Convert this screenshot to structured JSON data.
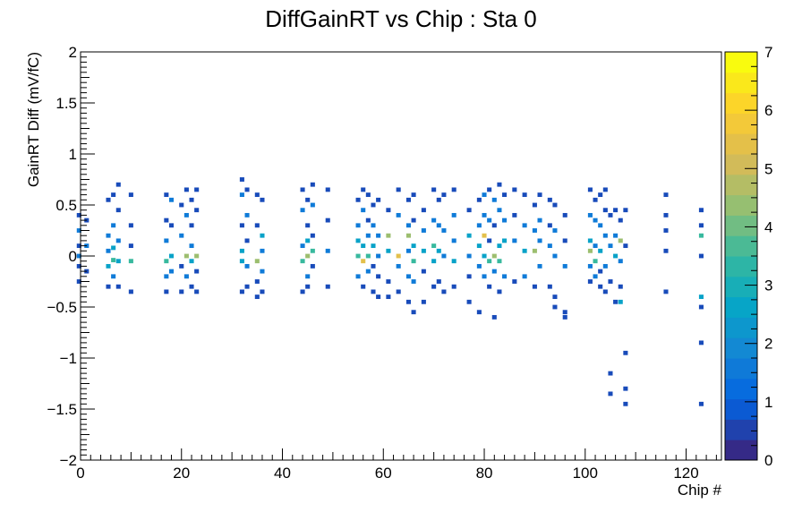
{
  "chart_data": {
    "type": "heatmap",
    "title": "DiffGainRT vs Chip : Sta 0",
    "xlabel": "Chip #",
    "ylabel": "GainRT Diff (mV/fC)",
    "xlim": [
      0,
      127
    ],
    "ylim": [
      -2,
      2
    ],
    "x_ticks": [
      "0",
      "20",
      "40",
      "60",
      "80",
      "100",
      "120"
    ],
    "y_ticks": [
      "2",
      "1.5",
      "1",
      "0.5",
      "0",
      "−0.5",
      "−1",
      "−1.5",
      "−2"
    ],
    "colorbar": {
      "range": [
        0,
        7
      ],
      "ticks": [
        "0",
        "1",
        "2",
        "3",
        "4",
        "5",
        "6",
        "7"
      ],
      "palette": "kBird",
      "colors": [
        "#352a87",
        "#0363e1",
        "#1485d4",
        "#06a7c6",
        "#38b99e",
        "#92bf73",
        "#d9ba56",
        "#fcce2e",
        "#f9fb0e"
      ]
    },
    "grid": false,
    "legend": "none",
    "bin_width": {
      "x": 1,
      "y": 0.025
    },
    "chips": [
      0,
      1,
      5,
      6,
      7,
      9,
      10,
      17,
      18,
      20,
      21,
      22,
      23,
      32,
      33,
      35,
      36,
      44,
      45,
      46,
      49,
      55,
      56,
      57,
      58,
      59,
      61,
      63,
      65,
      66,
      68,
      70,
      71,
      72,
      74,
      77,
      79,
      80,
      81,
      82,
      83,
      84,
      86,
      88,
      90,
      91,
      93,
      94,
      96,
      101,
      102,
      103,
      104,
      105,
      106,
      107,
      108,
      116,
      123
    ],
    "cells": [
      [
        -0.3,
        0.4,
        1
      ],
      [
        -0.3,
        0.25,
        2
      ],
      [
        -0.3,
        0.1,
        1
      ],
      [
        -0.3,
        0.0,
        2
      ],
      [
        -0.3,
        -0.1,
        1
      ],
      [
        -0.3,
        -0.25,
        1
      ],
      [
        1.2,
        0.35,
        1
      ],
      [
        1.2,
        0.1,
        2
      ],
      [
        1.2,
        -0.15,
        1
      ],
      [
        5.5,
        0.55,
        1
      ],
      [
        5.5,
        0.2,
        2
      ],
      [
        5.5,
        0.05,
        2
      ],
      [
        5.5,
        -0.1,
        3
      ],
      [
        5.5,
        -0.3,
        1
      ],
      [
        6.5,
        0.6,
        1
      ],
      [
        6.5,
        0.3,
        2
      ],
      [
        6.5,
        0.08,
        3
      ],
      [
        6.5,
        -0.04,
        4
      ],
      [
        6.5,
        -0.2,
        2
      ],
      [
        7.5,
        0.7,
        1
      ],
      [
        7.5,
        0.45,
        1
      ],
      [
        7.5,
        0.15,
        2
      ],
      [
        7.5,
        -0.05,
        3
      ],
      [
        7.5,
        -0.3,
        1
      ],
      [
        10,
        0.6,
        1
      ],
      [
        10,
        0.3,
        1
      ],
      [
        10,
        0.1,
        1
      ],
      [
        10,
        -0.05,
        4
      ],
      [
        10,
        -0.35,
        1
      ],
      [
        17,
        0.6,
        1
      ],
      [
        17,
        0.35,
        1
      ],
      [
        17,
        0.15,
        2
      ],
      [
        17,
        -0.05,
        4
      ],
      [
        17,
        -0.2,
        2
      ],
      [
        17,
        -0.35,
        1
      ],
      [
        18,
        0.55,
        2
      ],
      [
        18,
        0.3,
        1
      ],
      [
        18,
        0.0,
        3
      ],
      [
        18,
        -0.15,
        2
      ],
      [
        20,
        0.5,
        1
      ],
      [
        20,
        0.2,
        2
      ],
      [
        20,
        -0.1,
        1
      ],
      [
        20,
        -0.35,
        1
      ],
      [
        21,
        0.65,
        1
      ],
      [
        21,
        0.4,
        2
      ],
      [
        21,
        0.0,
        5
      ],
      [
        21,
        -0.2,
        2
      ],
      [
        22,
        0.55,
        1
      ],
      [
        22,
        0.3,
        1
      ],
      [
        22,
        0.1,
        2
      ],
      [
        22,
        -0.05,
        3
      ],
      [
        22,
        -0.3,
        1
      ],
      [
        23,
        0.65,
        1
      ],
      [
        23,
        0.45,
        1
      ],
      [
        23,
        0.0,
        5
      ],
      [
        23,
        -0.15,
        1
      ],
      [
        23,
        -0.35,
        1
      ],
      [
        32,
        0.75,
        1
      ],
      [
        32,
        0.6,
        2
      ],
      [
        32,
        0.3,
        1
      ],
      [
        32,
        0.05,
        3
      ],
      [
        32,
        -0.05,
        3
      ],
      [
        32,
        -0.35,
        1
      ],
      [
        33,
        0.65,
        1
      ],
      [
        33,
        0.4,
        2
      ],
      [
        33,
        0.15,
        1
      ],
      [
        33,
        -0.1,
        2
      ],
      [
        33,
        -0.3,
        1
      ],
      [
        35,
        0.6,
        1
      ],
      [
        35,
        0.3,
        1
      ],
      [
        35,
        -0.05,
        5
      ],
      [
        35,
        -0.25,
        1
      ],
      [
        35,
        -0.4,
        1
      ],
      [
        36,
        0.55,
        1
      ],
      [
        36,
        0.2,
        3
      ],
      [
        36,
        0.05,
        2
      ],
      [
        36,
        -0.15,
        2
      ],
      [
        36,
        -0.35,
        1
      ],
      [
        44,
        0.65,
        1
      ],
      [
        44,
        0.45,
        2
      ],
      [
        44,
        0.1,
        2
      ],
      [
        44,
        -0.05,
        4
      ],
      [
        44,
        -0.35,
        1
      ],
      [
        45,
        0.55,
        1
      ],
      [
        45,
        0.3,
        1
      ],
      [
        45,
        0.15,
        3
      ],
      [
        45,
        0.0,
        5
      ],
      [
        45,
        -0.2,
        2
      ],
      [
        45,
        -0.3,
        1
      ],
      [
        46,
        0.7,
        1
      ],
      [
        46,
        0.5,
        2
      ],
      [
        46,
        0.2,
        1
      ],
      [
        46,
        0.05,
        4
      ],
      [
        46,
        -0.1,
        1
      ],
      [
        49,
        0.65,
        1
      ],
      [
        49,
        0.35,
        1
      ],
      [
        49,
        0.05,
        2
      ],
      [
        49,
        -0.3,
        1
      ],
      [
        55,
        0.55,
        1
      ],
      [
        55,
        0.3,
        2
      ],
      [
        55,
        0.15,
        3
      ],
      [
        55,
        0.0,
        4
      ],
      [
        55,
        -0.2,
        2
      ],
      [
        56,
        0.65,
        1
      ],
      [
        56,
        0.45,
        2
      ],
      [
        56,
        0.1,
        3
      ],
      [
        56,
        -0.05,
        6
      ],
      [
        56,
        -0.3,
        1
      ],
      [
        57,
        0.6,
        1
      ],
      [
        57,
        0.35,
        1
      ],
      [
        57,
        0.2,
        2
      ],
      [
        57,
        0.0,
        4
      ],
      [
        57,
        -0.15,
        2
      ],
      [
        58,
        0.5,
        1
      ],
      [
        58,
        0.3,
        2
      ],
      [
        58,
        0.1,
        3
      ],
      [
        58,
        -0.1,
        1
      ],
      [
        58,
        -0.35,
        1
      ],
      [
        59,
        0.55,
        1
      ],
      [
        59,
        0.2,
        2
      ],
      [
        59,
        0.0,
        2
      ],
      [
        59,
        -0.2,
        1
      ],
      [
        59,
        -0.4,
        1
      ],
      [
        61,
        0.45,
        1
      ],
      [
        61,
        0.2,
        5
      ],
      [
        61,
        0.05,
        3
      ],
      [
        61,
        -0.25,
        1
      ],
      [
        61,
        -0.4,
        1
      ],
      [
        63,
        0.65,
        1
      ],
      [
        63,
        0.4,
        2
      ],
      [
        63,
        0.0,
        6
      ],
      [
        63,
        -0.1,
        2
      ],
      [
        63,
        -0.35,
        1
      ],
      [
        65,
        0.55,
        1
      ],
      [
        65,
        0.3,
        2
      ],
      [
        65,
        0.2,
        5
      ],
      [
        65,
        0.05,
        2
      ],
      [
        65,
        -0.2,
        2
      ],
      [
        65,
        -0.45,
        1
      ],
      [
        66,
        0.6,
        1
      ],
      [
        66,
        0.35,
        1
      ],
      [
        66,
        0.1,
        3
      ],
      [
        66,
        -0.05,
        4
      ],
      [
        66,
        -0.25,
        2
      ],
      [
        66,
        -0.55,
        1
      ],
      [
        68,
        0.45,
        1
      ],
      [
        68,
        0.25,
        2
      ],
      [
        68,
        0.05,
        3
      ],
      [
        68,
        -0.15,
        1
      ],
      [
        68,
        -0.45,
        1
      ],
      [
        70,
        0.65,
        1
      ],
      [
        70,
        0.35,
        2
      ],
      [
        70,
        0.1,
        4
      ],
      [
        70,
        -0.05,
        3
      ],
      [
        70,
        -0.3,
        1
      ],
      [
        71,
        0.55,
        1
      ],
      [
        71,
        0.3,
        2
      ],
      [
        71,
        0.05,
        3
      ],
      [
        71,
        -0.25,
        1
      ],
      [
        72,
        0.6,
        1
      ],
      [
        72,
        0.25,
        2
      ],
      [
        72,
        0.0,
        2
      ],
      [
        72,
        -0.35,
        1
      ],
      [
        74,
        0.65,
        1
      ],
      [
        74,
        0.4,
        2
      ],
      [
        74,
        0.15,
        2
      ],
      [
        74,
        -0.05,
        3
      ],
      [
        74,
        -0.3,
        1
      ],
      [
        77,
        0.45,
        1
      ],
      [
        77,
        0.2,
        3
      ],
      [
        77,
        0.0,
        2
      ],
      [
        77,
        -0.2,
        1
      ],
      [
        77,
        -0.45,
        1
      ],
      [
        79,
        0.55,
        1
      ],
      [
        79,
        0.3,
        2
      ],
      [
        79,
        0.1,
        3
      ],
      [
        79,
        -0.1,
        2
      ],
      [
        79,
        -0.55,
        1
      ],
      [
        80,
        0.6,
        2
      ],
      [
        80,
        0.4,
        2
      ],
      [
        80,
        0.2,
        6
      ],
      [
        80,
        0.0,
        3
      ],
      [
        80,
        -0.2,
        2
      ],
      [
        81,
        0.65,
        1
      ],
      [
        81,
        0.35,
        2
      ],
      [
        81,
        0.15,
        1
      ],
      [
        81,
        -0.05,
        4
      ],
      [
        81,
        -0.3,
        1
      ],
      [
        82,
        0.55,
        2
      ],
      [
        82,
        0.3,
        1
      ],
      [
        82,
        0.0,
        5
      ],
      [
        82,
        -0.15,
        2
      ],
      [
        82,
        -0.6,
        1
      ],
      [
        83,
        0.7,
        1
      ],
      [
        83,
        0.45,
        2
      ],
      [
        83,
        0.1,
        3
      ],
      [
        83,
        -0.05,
        4
      ],
      [
        83,
        -0.35,
        1
      ],
      [
        84,
        0.6,
        1
      ],
      [
        84,
        0.35,
        2
      ],
      [
        84,
        0.15,
        3
      ],
      [
        84,
        -0.2,
        2
      ],
      [
        86,
        0.65,
        1
      ],
      [
        86,
        0.4,
        1
      ],
      [
        86,
        0.15,
        2
      ],
      [
        86,
        -0.25,
        1
      ],
      [
        88,
        0.6,
        1
      ],
      [
        88,
        0.3,
        2
      ],
      [
        88,
        0.05,
        3
      ],
      [
        88,
        -0.2,
        2
      ],
      [
        90,
        0.5,
        1
      ],
      [
        90,
        0.25,
        2
      ],
      [
        90,
        0.05,
        5
      ],
      [
        90,
        -0.3,
        1
      ],
      [
        91,
        0.6,
        1
      ],
      [
        91,
        0.35,
        2
      ],
      [
        91,
        0.15,
        2
      ],
      [
        91,
        -0.1,
        2
      ],
      [
        93,
        0.55,
        1
      ],
      [
        93,
        0.3,
        1
      ],
      [
        93,
        0.1,
        2
      ],
      [
        93,
        -0.3,
        1
      ],
      [
        94,
        0.5,
        1
      ],
      [
        94,
        0.25,
        2
      ],
      [
        94,
        0.0,
        2
      ],
      [
        94,
        -0.4,
        1
      ],
      [
        94,
        -0.5,
        1
      ],
      [
        96,
        0.4,
        1
      ],
      [
        96,
        0.15,
        1
      ],
      [
        96,
        -0.1,
        2
      ],
      [
        96,
        -0.55,
        1
      ],
      [
        96,
        -0.6,
        1
      ],
      [
        101,
        0.65,
        1
      ],
      [
        101,
        0.4,
        2
      ],
      [
        101,
        0.15,
        3
      ],
      [
        101,
        0.05,
        5
      ],
      [
        101,
        -0.1,
        2
      ],
      [
        101,
        -0.25,
        1
      ],
      [
        102,
        0.55,
        1
      ],
      [
        102,
        0.35,
        2
      ],
      [
        102,
        0.1,
        2
      ],
      [
        102,
        -0.05,
        4
      ],
      [
        102,
        -0.2,
        2
      ],
      [
        103,
        0.6,
        1
      ],
      [
        103,
        0.3,
        2
      ],
      [
        103,
        0.05,
        3
      ],
      [
        103,
        -0.15,
        1
      ],
      [
        103,
        -0.3,
        1
      ],
      [
        104,
        0.65,
        1
      ],
      [
        104,
        0.45,
        1
      ],
      [
        104,
        0.2,
        2
      ],
      [
        104,
        -0.1,
        2
      ],
      [
        104,
        -0.35,
        1
      ],
      [
        105,
        0.4,
        1
      ],
      [
        105,
        0.1,
        2
      ],
      [
        105,
        -0.25,
        1
      ],
      [
        105,
        -1.15,
        1
      ],
      [
        105,
        -1.35,
        1
      ],
      [
        106,
        0.45,
        1
      ],
      [
        106,
        0.2,
        2
      ],
      [
        106,
        0.0,
        3
      ],
      [
        106,
        -0.45,
        1
      ],
      [
        107,
        0.35,
        1
      ],
      [
        107,
        0.15,
        5
      ],
      [
        107,
        -0.05,
        2
      ],
      [
        107,
        -0.3,
        1
      ],
      [
        107,
        -0.45,
        3
      ],
      [
        108,
        0.45,
        1
      ],
      [
        108,
        0.1,
        1
      ],
      [
        108,
        -0.95,
        1
      ],
      [
        108,
        -1.3,
        1
      ],
      [
        108,
        -1.45,
        1
      ],
      [
        116,
        0.6,
        1
      ],
      [
        116,
        0.4,
        1
      ],
      [
        116,
        0.25,
        1
      ],
      [
        116,
        0.05,
        1
      ],
      [
        116,
        -0.35,
        1
      ],
      [
        123,
        0.45,
        1
      ],
      [
        123,
        0.3,
        1
      ],
      [
        123,
        0.2,
        4
      ],
      [
        123,
        0.0,
        1
      ],
      [
        123,
        -0.4,
        3
      ],
      [
        123,
        -0.5,
        1
      ],
      [
        123,
        -0.85,
        1
      ],
      [
        123,
        -1.45,
        1
      ]
    ]
  }
}
